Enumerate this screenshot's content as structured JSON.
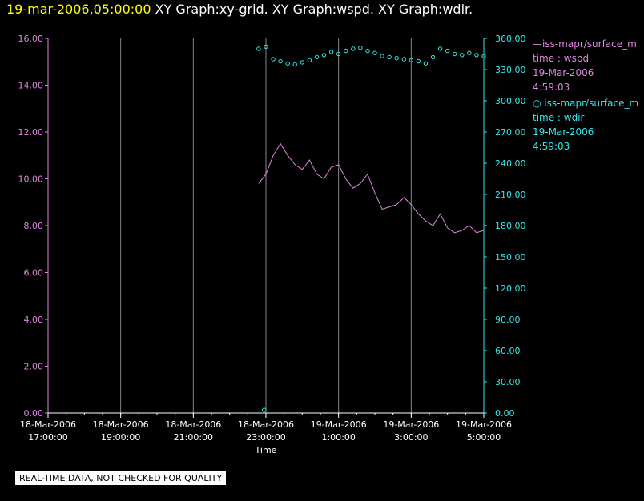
{
  "header": {
    "timestamp": "19-mar-2006,05:00:00",
    "graphs": "XY Graph:xy-grid.  XY Graph:wspd.  XY Graph:wdir."
  },
  "colors": {
    "wspd": "#dd88dd",
    "wdir": "#33e8e8",
    "grid": "#888888",
    "title_timestamp": "#ffff00"
  },
  "legend": {
    "wspd": {
      "name": "iss-mapr/surface_m",
      "variable": "time : wspd",
      "date": "19-Mar-2006",
      "time": "4:59:03"
    },
    "wdir": {
      "name": "iss-mapr/surface_m",
      "variable": "time : wdir",
      "date": "19-Mar-2006",
      "time": "4:59:03"
    }
  },
  "note": "REAL-TIME DATA, NOT CHECKED FOR QUALITY",
  "chart_data": {
    "type": "line",
    "xlabel": "Time",
    "x_ticks": [
      [
        "18-Mar-2006",
        "17:00:00"
      ],
      [
        "18-Mar-2006",
        "19:00:00"
      ],
      [
        "18-Mar-2006",
        "21:00:00"
      ],
      [
        "18-Mar-2006",
        "23:00:00"
      ],
      [
        "19-Mar-2006",
        "1:00:00"
      ],
      [
        "19-Mar-2006",
        "3:00:00"
      ],
      [
        "19-Mar-2006",
        "5:00:00"
      ]
    ],
    "x_tick_hours": [
      -7,
      -5,
      -3,
      -1,
      1,
      3,
      5
    ],
    "xlim_hours": [
      -7,
      5
    ],
    "grid": true,
    "left_axis": {
      "ylim": [
        0,
        16
      ],
      "ticks": [
        "0.00",
        "2.00",
        "4.00",
        "6.00",
        "8.00",
        "10.00",
        "12.00",
        "14.00",
        "16.00"
      ]
    },
    "right_axis": {
      "ylim": [
        0,
        360
      ],
      "ticks": [
        "0.00",
        "30.00",
        "60.00",
        "90.00",
        "120.00",
        "150.00",
        "180.00",
        "210.00",
        "240.00",
        "270.00",
        "300.00",
        "330.00",
        "360.00"
      ]
    },
    "series": [
      {
        "variable": "wspd",
        "axis": "left",
        "style": "line",
        "x_hours": [
          -1.2,
          -1.0,
          -0.8,
          -0.6,
          -0.4,
          -0.2,
          0.0,
          0.2,
          0.4,
          0.6,
          0.8,
          1.0,
          1.2,
          1.4,
          1.6,
          1.8,
          2.0,
          2.2,
          2.4,
          2.6,
          2.8,
          3.0,
          3.2,
          3.4,
          3.6,
          3.8,
          4.0,
          4.2,
          4.4,
          4.6,
          4.8,
          5.0
        ],
        "values": [
          9.8,
          10.2,
          11.0,
          11.5,
          11.0,
          10.6,
          10.4,
          10.8,
          10.2,
          10.0,
          10.5,
          10.6,
          10.0,
          9.6,
          9.8,
          10.2,
          9.4,
          8.7,
          8.8,
          8.9,
          9.2,
          8.9,
          8.5,
          8.2,
          8.0,
          8.5,
          7.9,
          7.7,
          7.8,
          8.0,
          7.7,
          7.8
        ]
      },
      {
        "variable": "wdir",
        "axis": "right",
        "style": "markers",
        "x_hours": [
          -1.2,
          -1.0,
          -0.8,
          -0.6,
          -0.4,
          -0.2,
          0.0,
          0.2,
          0.4,
          0.6,
          0.8,
          1.0,
          1.2,
          1.4,
          1.6,
          1.8,
          2.0,
          2.2,
          2.4,
          2.6,
          2.8,
          3.0,
          3.2,
          3.4,
          3.6,
          3.8,
          4.0,
          4.2,
          4.4,
          4.6,
          4.8,
          5.0
        ],
        "values": [
          350,
          352,
          340,
          338,
          336,
          335,
          337,
          339,
          342,
          344,
          347,
          345,
          348,
          350,
          351,
          348,
          346,
          343,
          342,
          341,
          340,
          339,
          338,
          336,
          342,
          350,
          348,
          345,
          344,
          346,
          344,
          343
        ]
      }
    ],
    "outlier_points": [
      {
        "variable": "wdir",
        "axis": "right",
        "x_hours": -1.05,
        "value": 3
      }
    ]
  }
}
